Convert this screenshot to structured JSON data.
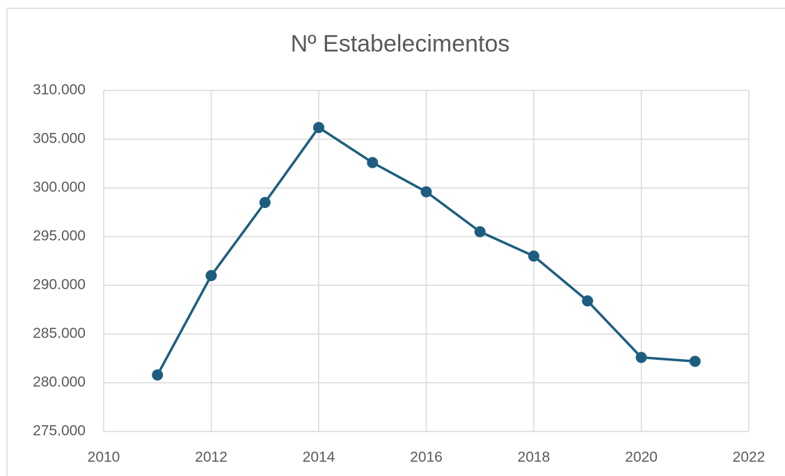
{
  "chart_data": {
    "type": "line",
    "title": "Nº Estabelecimentos",
    "x": [
      2011,
      2012,
      2013,
      2014,
      2015,
      2016,
      2017,
      2018,
      2019,
      2020,
      2021
    ],
    "series": [
      {
        "name": "Nº Estabelecimentos",
        "color": "#1d5e80",
        "values": [
          280800,
          291000,
          298500,
          306200,
          302600,
          299600,
          295500,
          293000,
          288400,
          282600,
          282200
        ]
      }
    ],
    "xlim": [
      2010,
      2022
    ],
    "xticks": [
      2010,
      2012,
      2014,
      2016,
      2018,
      2020,
      2022
    ],
    "ylim": [
      275000,
      310000
    ],
    "yticks": [
      {
        "value": 275000,
        "label": "275.000"
      },
      {
        "value": 280000,
        "label": "280.000"
      },
      {
        "value": 285000,
        "label": "285.000"
      },
      {
        "value": 290000,
        "label": "290.000"
      },
      {
        "value": 295000,
        "label": "295.000"
      },
      {
        "value": 300000,
        "label": "300.000"
      },
      {
        "value": 305000,
        "label": "305.000"
      },
      {
        "value": 310000,
        "label": "310.000"
      }
    ],
    "grid": true
  }
}
